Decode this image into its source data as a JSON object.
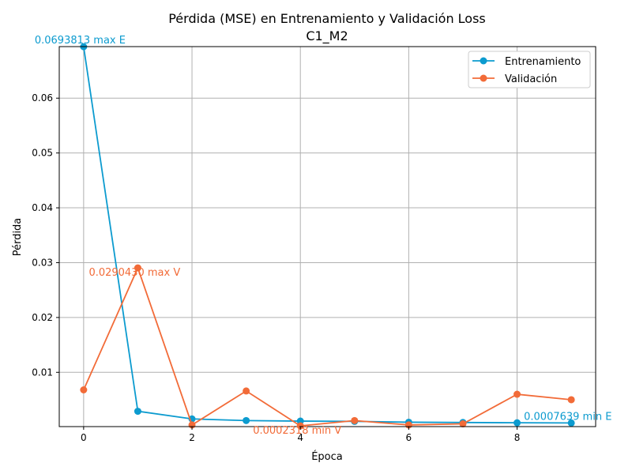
{
  "chart_data": {
    "type": "line",
    "title": "Pérdida (MSE) en Entrenamiento y Validación Loss",
    "subtitle": "C1_M2",
    "xlabel": "Época",
    "ylabel": "Pérdida",
    "xlim": [
      -0.45,
      9.45
    ],
    "ylim": [
      0.0001,
      0.0694
    ],
    "x_ticks": [
      0,
      2,
      4,
      6,
      8
    ],
    "y_ticks": [
      0.01,
      0.02,
      0.03,
      0.04,
      0.05,
      0.06
    ],
    "y_tick_labels": [
      "0.01",
      "0.02",
      "0.03",
      "0.04",
      "0.05",
      "0.06"
    ],
    "grid": true,
    "legend_position": "top-right",
    "x": [
      0,
      1,
      2,
      3,
      4,
      5,
      6,
      7,
      8,
      9
    ],
    "series": [
      {
        "name": "Entrenamiento",
        "color": "#0c9bcf",
        "values": [
          0.0693813,
          0.0029,
          0.0015,
          0.0012,
          0.0011,
          0.00105,
          0.0009,
          0.00085,
          0.0008,
          0.0007639
        ]
      },
      {
        "name": "Validación",
        "color": "#f26b38",
        "values": [
          0.0068,
          0.029043,
          0.0004,
          0.0066,
          0.0002318,
          0.0012,
          0.0004,
          0.0006,
          0.006,
          0.005
        ]
      }
    ],
    "annotations": [
      {
        "text": "0.0693813 max E",
        "x": 0,
        "y": 0.0693813,
        "series": 0
      },
      {
        "text": "0.0290430 max V",
        "x": 1,
        "y": 0.029043,
        "series": 1
      },
      {
        "text": "0.0002318 min V",
        "x": 4,
        "y": 0.0002318,
        "series": 1
      },
      {
        "text": "0.0007639 min E",
        "x": 9,
        "y": 0.0007639,
        "series": 0
      }
    ]
  }
}
